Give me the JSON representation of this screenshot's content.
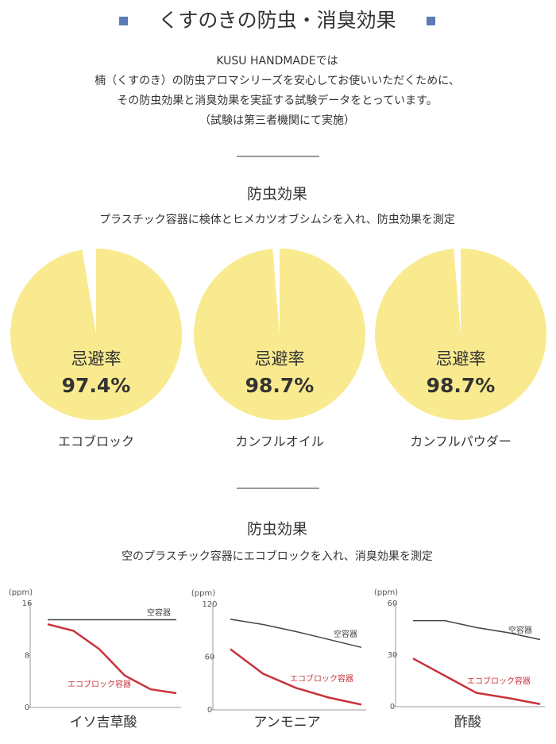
{
  "header": {
    "title": "くすのきの防虫・消臭効果",
    "intro": [
      "KUSU HANDMADEでは",
      "楠（くすのき）の防虫アロマシリーズを安心してお使いいただくために、",
      "その防虫効果と消臭効果を実証する試験データをとっています。",
      "（試験は第三者機関にて実施）"
    ]
  },
  "sections": [
    {
      "heading": "防虫効果",
      "description": "プラスチック容器に検体とヒメカツオブシムシを入れ、防虫効果を測定"
    },
    {
      "heading": "防虫効果",
      "description": "空のプラスチック容器にエコブロックを入れ、消臭効果を測定"
    }
  ],
  "chart_data": [
    {
      "type": "pie",
      "title": "エコブロック",
      "center_label": "忌避率",
      "values": [
        97.4
      ],
      "value_labels": [
        "97.4%"
      ],
      "color": "#f9ea8f"
    },
    {
      "type": "pie",
      "title": "カンフルオイル",
      "center_label": "忌避率",
      "values": [
        98.7
      ],
      "value_labels": [
        "98.7%"
      ],
      "color": "#f9ea8f"
    },
    {
      "type": "pie",
      "title": "カンフルパウダー",
      "center_label": "忌避率",
      "values": [
        98.7
      ],
      "value_labels": [
        "98.7%"
      ],
      "color": "#f9ea8f"
    },
    {
      "type": "line",
      "title": "イソ吉草酸",
      "y_label": "(ppm)",
      "categories": [
        null,
        null,
        null,
        null,
        null,
        null
      ],
      "ylim": [
        0,
        16
      ],
      "yticks": [
        0,
        8,
        16
      ],
      "series": [
        {
          "name": "空容器",
          "color": "#444444",
          "values": [
            13.5,
            13.5,
            13.5,
            13.5,
            13.5,
            13.5
          ]
        },
        {
          "name": "エコブロック容器",
          "color": "#c8333a",
          "values": [
            12.8,
            11.8,
            9.0,
            4.9,
            2.8,
            2.2
          ]
        }
      ]
    },
    {
      "type": "line",
      "title": "アンモニア",
      "y_label": "(ppm)",
      "categories": [
        null,
        null,
        null,
        null,
        null
      ],
      "ylim": [
        0,
        120
      ],
      "yticks": [
        0,
        60,
        120
      ],
      "series": [
        {
          "name": "空容器",
          "color": "#444444",
          "values": [
            103,
            97,
            89,
            80,
            71
          ]
        },
        {
          "name": "エコブロック容器",
          "color": "#c8333a",
          "values": [
            69,
            41,
            25,
            14,
            6
          ]
        }
      ]
    },
    {
      "type": "line",
      "title": "酢酸",
      "y_label": "(ppm)",
      "categories": [
        null,
        null,
        null,
        null,
        null
      ],
      "ylim": [
        0,
        60
      ],
      "yticks": [
        0,
        30,
        60
      ],
      "series": [
        {
          "name": "空容器",
          "color": "#444444",
          "values": [
            50,
            50,
            46,
            43,
            39
          ]
        },
        {
          "name": "エコブロック容器",
          "color": "#c8333a",
          "values": [
            28,
            18,
            8,
            5,
            1.5
          ]
        }
      ]
    }
  ]
}
